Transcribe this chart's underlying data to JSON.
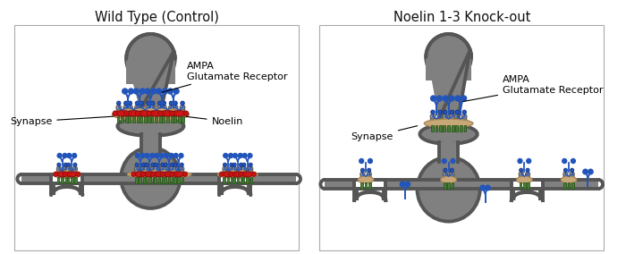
{
  "title_left": "Wild Type (Control)",
  "title_right": "Noelin 1-3 Knock-out",
  "label_synapse_left": "Synapse",
  "label_synapse_right": "Synapse",
  "label_ampa_left": "AMPA\nGlutamate Receptor",
  "label_ampa_right": "AMPA\nGlutamate Receptor",
  "label_noelin": "Noelin",
  "bg_color": "#ffffff",
  "neuron_color": "#808080",
  "neuron_edge": "#555555",
  "synapse_fill": "#c8a878",
  "receptor_gray": "#999999",
  "receptor_green": "#4a7a3a",
  "noelin_red": "#cc1111",
  "ampa_blue": "#2255bb",
  "title_fontsize": 10.5,
  "label_fontsize": 8.0
}
